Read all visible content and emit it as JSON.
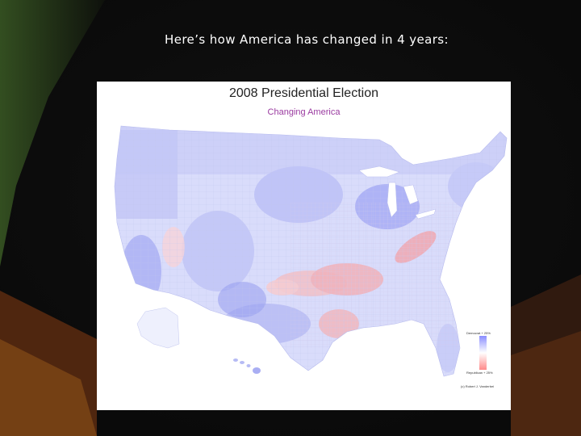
{
  "slide": {
    "title": "Here’s how America has changed in 4 years:"
  },
  "map": {
    "title": "2008 Presidential Election",
    "subtitle": "Changing America",
    "legend": {
      "top_label": "Democrat + 25%",
      "bottom_label": "Republican + 25%",
      "top_color": "#8a8dff",
      "mid_color": "#ffffff",
      "bottom_color": "#ff8a8a"
    },
    "credit": "(c) Robert J. Vanderbei",
    "colors": {
      "land_base": "#d9dcfb",
      "blue_shift": "#aeb3f6",
      "strong_blue": "#9298ee",
      "red_shift": "#f3b9be",
      "strong_red": "#eb8e98",
      "neutral": "#eeeeff",
      "county_line": "#c2c6ef"
    }
  }
}
